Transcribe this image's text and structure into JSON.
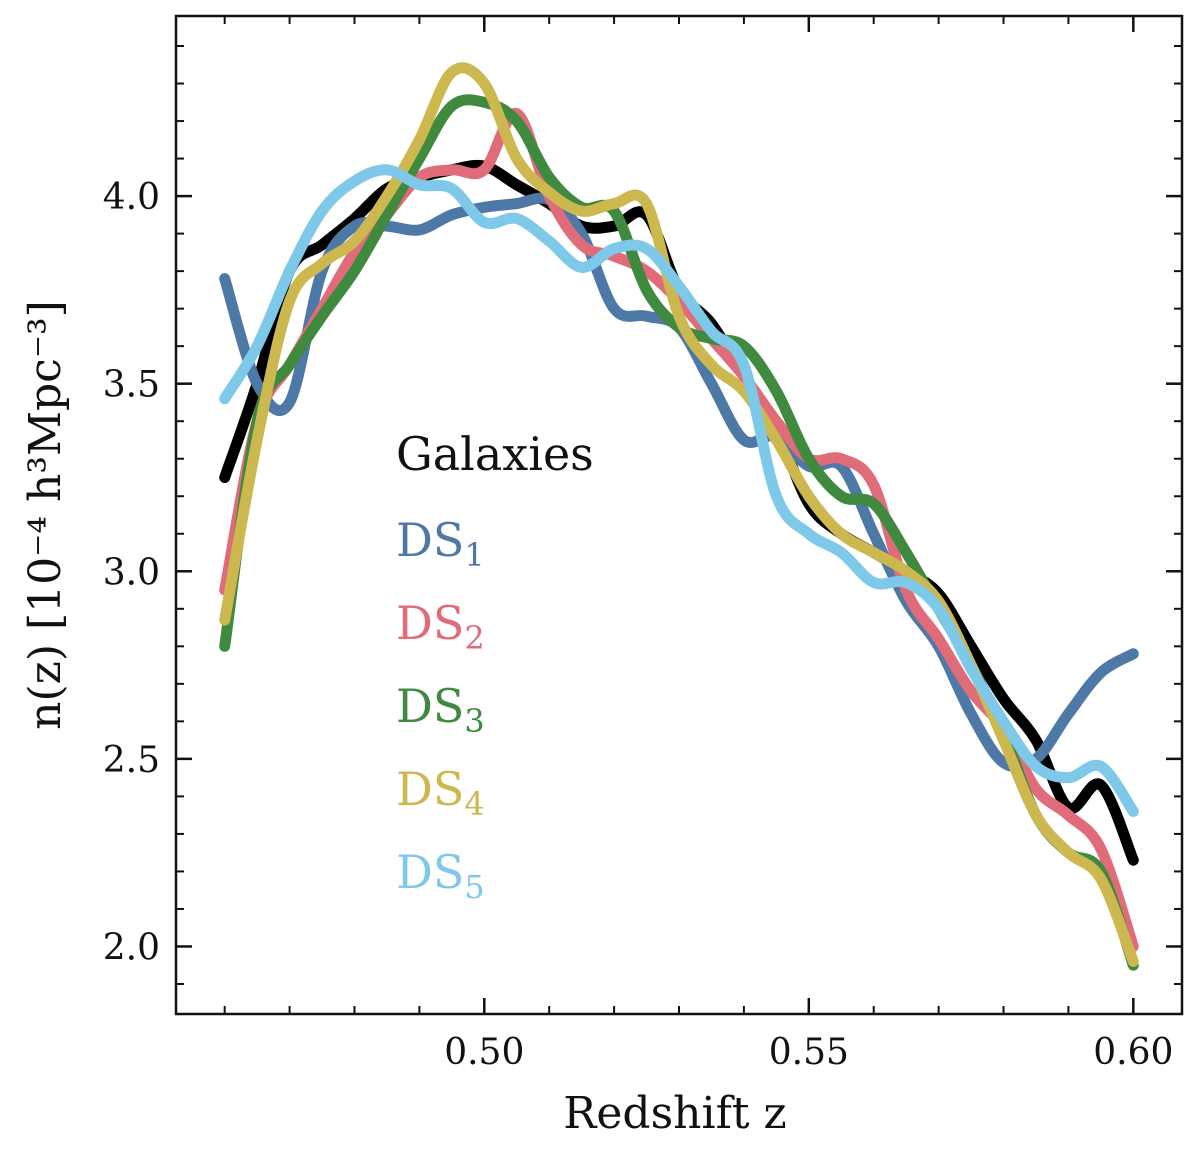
{
  "chart_data": {
    "type": "line",
    "title": "",
    "xlabel": "Redshift z",
    "ylabel": "n(z) [10⁻⁴ h³Mpc⁻³]",
    "xlim": [
      0.4525,
      0.6075
    ],
    "ylim": [
      1.82,
      4.48
    ],
    "xticks": [
      0.5,
      0.55,
      0.6
    ],
    "xtick_labels": [
      "0.50",
      "0.55",
      "0.60"
    ],
    "yticks": [
      2.0,
      2.5,
      3.0,
      3.5,
      4.0
    ],
    "ytick_labels": [
      "2.0",
      "2.5",
      "3.0",
      "3.5",
      "4.0"
    ],
    "legend_position": "center-left",
    "legend_title": "Galaxies",
    "x": [
      0.46,
      0.465,
      0.47,
      0.475,
      0.48,
      0.485,
      0.49,
      0.495,
      0.5,
      0.505,
      0.51,
      0.515,
      0.52,
      0.525,
      0.53,
      0.535,
      0.54,
      0.545,
      0.55,
      0.555,
      0.56,
      0.565,
      0.57,
      0.575,
      0.58,
      0.585,
      0.59,
      0.595,
      0.6
    ],
    "series": [
      {
        "name": "Galaxies",
        "color": "#000000",
        "values": [
          3.25,
          3.5,
          3.8,
          3.87,
          3.94,
          4.02,
          4.05,
          4.07,
          4.08,
          4.03,
          3.98,
          3.92,
          3.92,
          3.95,
          3.75,
          3.66,
          3.52,
          3.38,
          3.18,
          3.1,
          3.05,
          3.0,
          2.94,
          2.8,
          2.66,
          2.55,
          2.37,
          2.43,
          2.23
        ]
      },
      {
        "name": "DS1",
        "label_main": "DS",
        "label_sub": "1",
        "color": "#4e79a7",
        "values": [
          3.78,
          3.5,
          3.45,
          3.8,
          3.92,
          3.92,
          3.91,
          3.95,
          3.97,
          3.98,
          3.99,
          3.9,
          3.7,
          3.68,
          3.65,
          3.5,
          3.35,
          3.36,
          3.28,
          3.28,
          3.1,
          2.92,
          2.8,
          2.62,
          2.49,
          2.5,
          2.62,
          2.73,
          2.78
        ]
      },
      {
        "name": "DS2",
        "label_main": "DS",
        "label_sub": "2",
        "color": "#e06c7a",
        "values": [
          2.95,
          3.4,
          3.55,
          3.7,
          3.85,
          3.95,
          4.05,
          4.07,
          4.07,
          4.22,
          4.0,
          3.87,
          3.84,
          3.8,
          3.72,
          3.62,
          3.52,
          3.4,
          3.3,
          3.3,
          3.23,
          2.95,
          2.82,
          2.68,
          2.58,
          2.42,
          2.35,
          2.26,
          2.0
        ]
      },
      {
        "name": "DS3",
        "label_main": "DS",
        "label_sub": "3",
        "color": "#3f8a3f",
        "values": [
          2.8,
          3.4,
          3.55,
          3.68,
          3.8,
          3.95,
          4.1,
          4.24,
          4.25,
          4.2,
          4.05,
          3.97,
          3.96,
          3.75,
          3.65,
          3.62,
          3.6,
          3.48,
          3.3,
          3.2,
          3.18,
          3.05,
          2.9,
          2.75,
          2.57,
          2.35,
          2.25,
          2.2,
          1.95
        ]
      },
      {
        "name": "DS4",
        "label_main": "DS",
        "label_sub": "4",
        "color": "#cdb74f",
        "values": [
          2.87,
          3.35,
          3.72,
          3.82,
          3.88,
          4.0,
          4.15,
          4.33,
          4.3,
          4.1,
          4.01,
          3.96,
          3.98,
          3.98,
          3.68,
          3.55,
          3.48,
          3.35,
          3.2,
          3.1,
          3.05,
          3.0,
          2.92,
          2.75,
          2.55,
          2.35,
          2.25,
          2.18,
          1.96
        ]
      },
      {
        "name": "DS5",
        "label_main": "DS",
        "label_sub": "5",
        "color": "#7ec8ea",
        "values": [
          3.46,
          3.6,
          3.8,
          3.96,
          4.04,
          4.07,
          4.03,
          4.02,
          3.93,
          3.94,
          3.88,
          3.81,
          3.86,
          3.86,
          3.76,
          3.64,
          3.55,
          3.2,
          3.1,
          3.05,
          2.97,
          2.97,
          2.9,
          2.74,
          2.6,
          2.48,
          2.45,
          2.48,
          2.36
        ]
      }
    ]
  }
}
